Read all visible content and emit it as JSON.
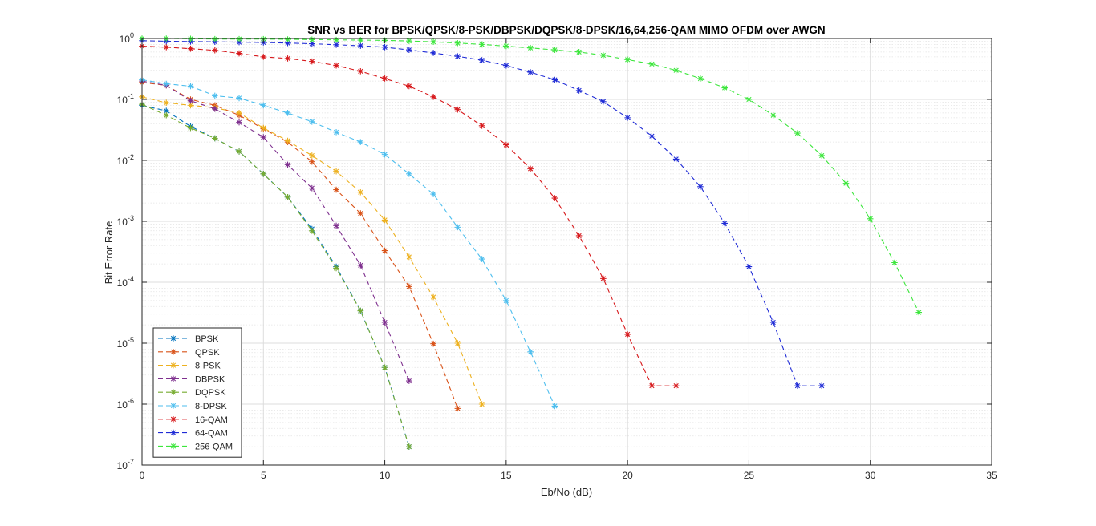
{
  "chart_data": {
    "type": "line",
    "title": "SNR vs BER for BPSK/QPSK/8-PSK/DBPSK/DQPSK/8-DPSK/16,64,256-QAM MIMO OFDM over AWGN",
    "xlabel": "Eb/No (dB)",
    "ylabel": "Bit Error Rate",
    "xlim": [
      0,
      35
    ],
    "ylim": [
      1e-07,
      1
    ],
    "yscale": "log",
    "grid": true,
    "minor_grid": true,
    "legend_position": "bottom-left",
    "line_style": "dashed",
    "marker": "asterisk",
    "x_ticks": [
      0,
      5,
      10,
      15,
      20,
      25,
      30,
      35
    ],
    "x_tick_labels": [
      "0",
      "5",
      "10",
      "15",
      "20",
      "25",
      "30",
      "35"
    ],
    "y_tick_exponents": [
      0,
      -1,
      -2,
      -3,
      -4,
      -5,
      -6,
      -7
    ],
    "y_tick_base": "10",
    "series": [
      {
        "name": "BPSK",
        "color": "#0072BD",
        "x": [
          0,
          1,
          2,
          3,
          4,
          5,
          6,
          7,
          8,
          9,
          10,
          11
        ],
        "y": [
          0.08,
          0.065,
          0.036,
          0.023,
          0.014,
          0.006,
          0.0025,
          0.00075,
          0.00018,
          3.4e-05,
          4e-06,
          2e-07
        ]
      },
      {
        "name": "QPSK",
        "color": "#D95319",
        "x": [
          0,
          1,
          2,
          3,
          4,
          5,
          6,
          7,
          8,
          9,
          10,
          11,
          12,
          13
        ],
        "y": [
          0.19,
          0.17,
          0.1,
          0.08,
          0.055,
          0.033,
          0.02,
          0.0095,
          0.0033,
          0.00135,
          0.00033,
          8.5e-05,
          9.8e-06,
          8.5e-07
        ]
      },
      {
        "name": "8-PSK",
        "color": "#EDB120",
        "x": [
          0,
          1,
          2,
          3,
          4,
          5,
          6,
          7,
          8,
          9,
          10,
          11,
          12,
          13,
          14
        ],
        "y": [
          0.11,
          0.088,
          0.08,
          0.073,
          0.06,
          0.034,
          0.021,
          0.012,
          0.0066,
          0.003,
          0.00105,
          0.00026,
          5.7e-05,
          1e-05,
          1e-06
        ]
      },
      {
        "name": "DBPSK",
        "color": "#7E2F8E",
        "x": [
          0,
          1,
          2,
          3,
          4,
          5,
          6,
          7,
          8,
          9,
          10,
          11
        ],
        "y": [
          0.2,
          0.17,
          0.095,
          0.07,
          0.042,
          0.024,
          0.0085,
          0.0035,
          0.00085,
          0.00019,
          2.2e-05,
          2.4e-06
        ]
      },
      {
        "name": "DQPSK",
        "color": "#77AC30",
        "x": [
          0,
          1,
          2,
          3,
          4,
          5,
          6,
          7,
          8,
          9,
          10,
          11
        ],
        "y": [
          0.083,
          0.055,
          0.034,
          0.023,
          0.014,
          0.006,
          0.0025,
          0.0007,
          0.00017,
          3.4e-05,
          4e-06,
          2e-07
        ]
      },
      {
        "name": "8-DPSK",
        "color": "#4DBEEE",
        "x": [
          0,
          1,
          2,
          3,
          4,
          5,
          6,
          7,
          8,
          9,
          10,
          11,
          12,
          13,
          14,
          15,
          16,
          17
        ],
        "y": [
          0.21,
          0.18,
          0.165,
          0.115,
          0.105,
          0.08,
          0.06,
          0.043,
          0.029,
          0.02,
          0.0125,
          0.006,
          0.0028,
          0.0008,
          0.00024,
          5e-05,
          7.2e-06,
          9.3e-07
        ]
      },
      {
        "name": "16-QAM",
        "color": "#D7191C",
        "x": [
          0,
          1,
          2,
          3,
          4,
          5,
          6,
          7,
          8,
          9,
          10,
          11,
          12,
          13,
          14,
          15,
          16,
          17,
          18,
          19,
          20,
          21,
          22
        ],
        "y": [
          0.75,
          0.72,
          0.68,
          0.64,
          0.57,
          0.5,
          0.47,
          0.42,
          0.36,
          0.29,
          0.22,
          0.165,
          0.11,
          0.068,
          0.037,
          0.018,
          0.0073,
          0.0024,
          0.00058,
          0.000115,
          1.4e-05,
          2e-06,
          2e-06
        ]
      },
      {
        "name": "64-QAM",
        "color": "#1F2BD6",
        "x": [
          0,
          1,
          2,
          3,
          4,
          5,
          6,
          7,
          8,
          9,
          10,
          11,
          12,
          13,
          14,
          15,
          16,
          17,
          18,
          19,
          20,
          21,
          22,
          23,
          24,
          25,
          26,
          27,
          28
        ],
        "y": [
          0.92,
          0.9,
          0.89,
          0.88,
          0.87,
          0.86,
          0.84,
          0.82,
          0.79,
          0.76,
          0.72,
          0.65,
          0.58,
          0.51,
          0.44,
          0.36,
          0.28,
          0.21,
          0.14,
          0.092,
          0.05,
          0.025,
          0.0105,
          0.0037,
          0.00093,
          0.00018,
          2.2e-05,
          2e-06,
          2e-06
        ]
      },
      {
        "name": "256-QAM",
        "color": "#3CE63C",
        "x": [
          0,
          1,
          2,
          3,
          4,
          5,
          6,
          7,
          8,
          9,
          10,
          11,
          12,
          13,
          14,
          15,
          16,
          17,
          18,
          19,
          20,
          21,
          22,
          23,
          24,
          25,
          26,
          27,
          28,
          29,
          30,
          31,
          32
        ],
        "y": [
          1.0,
          1.0,
          0.99,
          0.98,
          0.98,
          0.98,
          0.97,
          0.96,
          0.95,
          0.94,
          0.93,
          0.91,
          0.88,
          0.84,
          0.8,
          0.75,
          0.7,
          0.65,
          0.6,
          0.53,
          0.45,
          0.38,
          0.3,
          0.22,
          0.155,
          0.1,
          0.055,
          0.028,
          0.012,
          0.0042,
          0.0011,
          0.00021,
          3.2e-05
        ]
      }
    ]
  }
}
